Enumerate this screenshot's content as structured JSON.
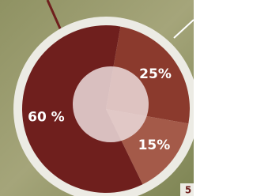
{
  "chart_data": {
    "type": "pie",
    "values": [
      25,
      15,
      60
    ],
    "value_labels": [
      "25%",
      "15%",
      "60 %"
    ],
    "colors": [
      "#8b3a2d",
      "#a45a49",
      "#6f1f1d"
    ],
    "annotation": "5"
  }
}
